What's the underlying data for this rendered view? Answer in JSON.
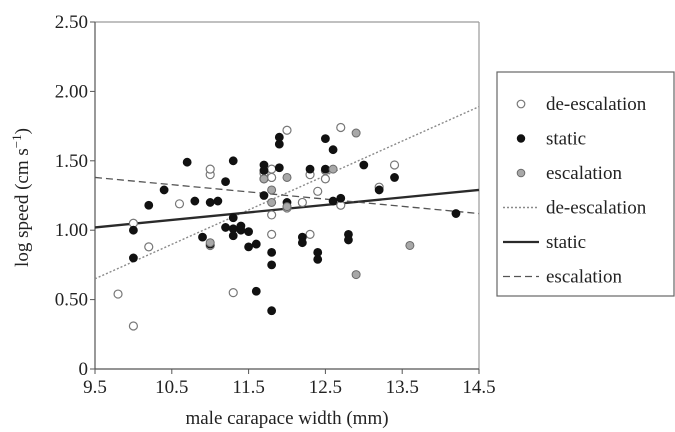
{
  "chart_data": {
    "type": "scatter",
    "title": "",
    "xlabel": "male carapace width (mm)",
    "ylabel_main": "log speed (cm s",
    "ylabel_sup": "−1",
    "ylabel_close": ")",
    "xlim": [
      9.5,
      14.5
    ],
    "ylim": [
      0,
      2.5
    ],
    "x_ticks": [
      "9.5",
      "10.5",
      "11.5",
      "12.5",
      "13.5",
      "14.5"
    ],
    "y_ticks": [
      "0",
      "0.50",
      "1.00",
      "1.50",
      "2.00",
      "2.50"
    ],
    "grid": false,
    "legend_position": "right",
    "legend": [
      {
        "label": "de-escalation",
        "kind": "marker",
        "series": "de-escalation"
      },
      {
        "label": "static",
        "kind": "marker",
        "series": "static"
      },
      {
        "label": "escalation",
        "kind": "marker",
        "series": "escalation"
      },
      {
        "label": "de-escalation",
        "kind": "line",
        "series": "de-escalation"
      },
      {
        "label": "static",
        "kind": "line",
        "series": "static"
      },
      {
        "label": "escalation",
        "kind": "line",
        "series": "escalation"
      }
    ],
    "series": [
      {
        "name": "de-escalation",
        "marker": "hollow",
        "color": "#888888",
        "points": [
          [
            9.8,
            0.54
          ],
          [
            10.0,
            0.31
          ],
          [
            10.0,
            1.05
          ],
          [
            10.2,
            0.88
          ],
          [
            10.6,
            1.19
          ],
          [
            11.0,
            1.4
          ],
          [
            11.0,
            1.44
          ],
          [
            11.0,
            0.89
          ],
          [
            11.3,
            0.55
          ],
          [
            11.7,
            1.37
          ],
          [
            11.7,
            1.41
          ],
          [
            11.8,
            1.44
          ],
          [
            11.8,
            1.38
          ],
          [
            11.8,
            1.11
          ],
          [
            11.8,
            0.97
          ],
          [
            12.0,
            1.72
          ],
          [
            12.0,
            1.16
          ],
          [
            12.2,
            1.2
          ],
          [
            12.3,
            1.4
          ],
          [
            12.3,
            0.97
          ],
          [
            12.4,
            1.28
          ],
          [
            12.5,
            1.37
          ],
          [
            12.5,
            1.43
          ],
          [
            12.7,
            1.74
          ],
          [
            12.7,
            1.18
          ],
          [
            13.2,
            1.31
          ],
          [
            13.4,
            1.47
          ]
        ],
        "fit": [
          [
            9.5,
            0.65
          ],
          [
            14.5,
            1.89
          ]
        ]
      },
      {
        "name": "static",
        "marker": "filled",
        "color": "#111111",
        "points": [
          [
            10.0,
            0.8
          ],
          [
            10.0,
            1.0
          ],
          [
            10.2,
            1.18
          ],
          [
            10.4,
            1.29
          ],
          [
            10.7,
            1.49
          ],
          [
            10.8,
            1.21
          ],
          [
            10.9,
            0.95
          ],
          [
            11.0,
            0.9
          ],
          [
            11.0,
            1.2
          ],
          [
            11.1,
            1.21
          ],
          [
            11.2,
            1.02
          ],
          [
            11.2,
            1.35
          ],
          [
            11.3,
            1.5
          ],
          [
            11.3,
            1.09
          ],
          [
            11.3,
            1.01
          ],
          [
            11.3,
            0.96
          ],
          [
            11.4,
            1.0
          ],
          [
            11.4,
            1.03
          ],
          [
            11.5,
            0.88
          ],
          [
            11.5,
            0.99
          ],
          [
            11.6,
            0.56
          ],
          [
            11.6,
            0.9
          ],
          [
            11.7,
            1.47
          ],
          [
            11.7,
            1.25
          ],
          [
            11.7,
            1.43
          ],
          [
            11.8,
            0.84
          ],
          [
            11.8,
            0.75
          ],
          [
            11.8,
            0.42
          ],
          [
            11.9,
            1.62
          ],
          [
            11.9,
            1.67
          ],
          [
            11.9,
            1.45
          ],
          [
            12.0,
            1.2
          ],
          [
            12.2,
            0.95
          ],
          [
            12.2,
            0.91
          ],
          [
            12.3,
            1.44
          ],
          [
            12.4,
            0.84
          ],
          [
            12.4,
            0.79
          ],
          [
            12.5,
            1.66
          ],
          [
            12.5,
            1.44
          ],
          [
            12.6,
            1.58
          ],
          [
            12.6,
            1.21
          ],
          [
            12.7,
            1.23
          ],
          [
            12.8,
            0.97
          ],
          [
            12.8,
            0.93
          ],
          [
            13.0,
            1.47
          ],
          [
            13.2,
            1.29
          ],
          [
            13.4,
            1.38
          ],
          [
            14.2,
            1.12
          ]
        ],
        "fit": [
          [
            9.5,
            1.02
          ],
          [
            14.5,
            1.29
          ]
        ]
      },
      {
        "name": "escalation",
        "marker": "gray",
        "color": "#a0a0a0",
        "points": [
          [
            11.0,
            0.91
          ],
          [
            11.7,
            1.37
          ],
          [
            11.8,
            1.29
          ],
          [
            11.8,
            1.2
          ],
          [
            12.0,
            1.38
          ],
          [
            12.0,
            1.17
          ],
          [
            12.6,
            1.44
          ],
          [
            12.9,
            1.7
          ],
          [
            12.9,
            0.68
          ],
          [
            13.6,
            0.89
          ]
        ],
        "fit": [
          [
            9.5,
            1.38
          ],
          [
            14.5,
            1.12
          ]
        ]
      }
    ]
  }
}
